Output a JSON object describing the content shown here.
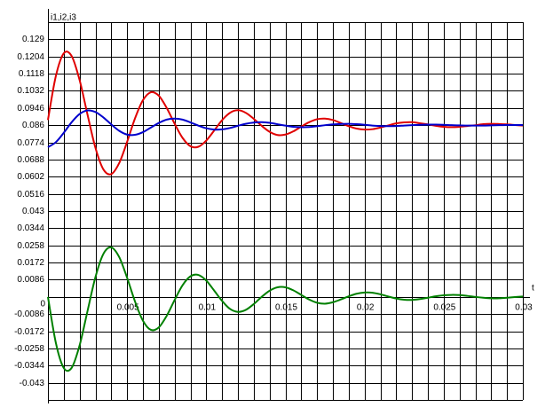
{
  "chart_data": {
    "type": "line",
    "ylabel": "i1,i2,i3",
    "xlabel": "t",
    "xlim": [
      0,
      0.03
    ],
    "ylim": [
      -0.0516,
      0.1376
    ],
    "xticks": [
      0,
      0.005,
      0.01,
      0.015,
      0.02,
      0.025,
      0.03
    ],
    "xgrid": [
      0,
      0.001,
      0.002,
      0.003,
      0.004,
      0.005,
      0.006,
      0.007,
      0.008,
      0.009,
      0.01,
      0.011,
      0.012,
      0.013,
      0.014,
      0.015,
      0.016,
      0.017,
      0.018,
      0.019,
      0.02,
      0.021,
      0.022,
      0.023,
      0.024,
      0.025,
      0.026,
      0.027,
      0.028,
      0.029,
      0.03
    ],
    "yticks": [
      0.129,
      0.1204,
      0.1118,
      0.1032,
      0.0946,
      0.086,
      0.0774,
      0.0688,
      0.0602,
      0.0516,
      0.043,
      0.0344,
      0.0258,
      0.0172,
      0.0086,
      -0.0086,
      -0.0172,
      -0.0258,
      -0.0344,
      -0.043
    ],
    "grid": true,
    "x": [
      0,
      0.0005,
      0.001,
      0.0015,
      0.002,
      0.0025,
      0.003,
      0.0035,
      0.004,
      0.0045,
      0.005,
      0.0055,
      0.006,
      0.0065,
      0.007,
      0.0075,
      0.008,
      0.0085,
      0.009,
      0.0095,
      0.01,
      0.0105,
      0.011,
      0.0115,
      0.012,
      0.0125,
      0.013,
      0.0135,
      0.014,
      0.0145,
      0.015,
      0.0155,
      0.016,
      0.0165,
      0.017,
      0.0175,
      0.018,
      0.0185,
      0.019,
      0.0195,
      0.02,
      0.0205,
      0.021,
      0.0215,
      0.022,
      0.0225,
      0.023,
      0.0235,
      0.024,
      0.0245,
      0.025,
      0.0255,
      0.026,
      0.0265,
      0.027,
      0.0275,
      0.028,
      0.0285,
      0.029,
      0.0295,
      0.03
    ],
    "series": [
      {
        "name": "i1",
        "color": "#e00000",
        "values": [
          0.0886,
          0.1106,
          0.122,
          0.1206,
          0.1086,
          0.0913,
          0.0747,
          0.0639,
          0.0615,
          0.067,
          0.0776,
          0.0894,
          0.0985,
          0.1025,
          0.1008,
          0.0947,
          0.0868,
          0.0797,
          0.0755,
          0.0752,
          0.0783,
          0.0833,
          0.0885,
          0.0922,
          0.0935,
          0.0922,
          0.0892,
          0.0857,
          0.0827,
          0.0811,
          0.0813,
          0.0829,
          0.0853,
          0.0875,
          0.089,
          0.0893,
          0.0886,
          0.0871,
          0.0855,
          0.0843,
          0.0838,
          0.084,
          0.0848,
          0.0859,
          0.0869,
          0.0874,
          0.0875,
          0.087,
          0.0864,
          0.0857,
          0.0852,
          0.085,
          0.0852,
          0.0856,
          0.086,
          0.0865,
          0.0867,
          0.0866,
          0.0864,
          0.0861,
          0.0858
        ]
      },
      {
        "name": "i2",
        "color": "#0000cc",
        "values": [
          0.075,
          0.0775,
          0.0822,
          0.0875,
          0.0916,
          0.0934,
          0.0926,
          0.0899,
          0.0864,
          0.0832,
          0.0813,
          0.0812,
          0.0825,
          0.0848,
          0.0871,
          0.0888,
          0.0893,
          0.0888,
          0.0874,
          0.0858,
          0.0845,
          0.0838,
          0.0839,
          0.0846,
          0.0857,
          0.0867,
          0.0873,
          0.0875,
          0.0872,
          0.0865,
          0.0858,
          0.0852,
          0.085,
          0.0851,
          0.0855,
          0.086,
          0.0864,
          0.0866,
          0.0867,
          0.0865,
          0.0862,
          0.0858,
          0.0856,
          0.0855,
          0.0856,
          0.0858,
          0.086,
          0.0862,
          0.0863,
          0.0863,
          0.0862,
          0.086,
          0.0859,
          0.0858,
          0.0858,
          0.0858,
          0.0859,
          0.086,
          0.0861,
          0.0861,
          0.0861
        ]
      },
      {
        "name": "i3",
        "color": "#008000",
        "values": [
          0,
          -0.023,
          -0.0356,
          -0.0355,
          -0.0243,
          -0.0071,
          0.0099,
          0.0215,
          0.0248,
          0.02,
          0.0096,
          -0.0023,
          -0.0119,
          -0.0165,
          -0.0153,
          -0.0095,
          -0.0016,
          0.0058,
          0.0103,
          0.011,
          0.0082,
          0.0032,
          -0.002,
          -0.006,
          -0.0075,
          -0.0065,
          -0.0036,
          0,
          0.0031,
          0.0048,
          0.0048,
          0.0033,
          0.001,
          -0.0013,
          -0.0029,
          -0.0034,
          -0.0027,
          -0.0013,
          0.0003,
          0.0016,
          0.0022,
          0.0021,
          0.0013,
          0.0002,
          -0.0008,
          -0.0014,
          -0.0015,
          -0.0011,
          -0.0004,
          0.0003,
          0.0008,
          0.001,
          0.0009,
          0.0005,
          0,
          -0.0004,
          -0.0007,
          -0.0007,
          -0.0004,
          -0.0001,
          0.0002
        ]
      }
    ]
  }
}
